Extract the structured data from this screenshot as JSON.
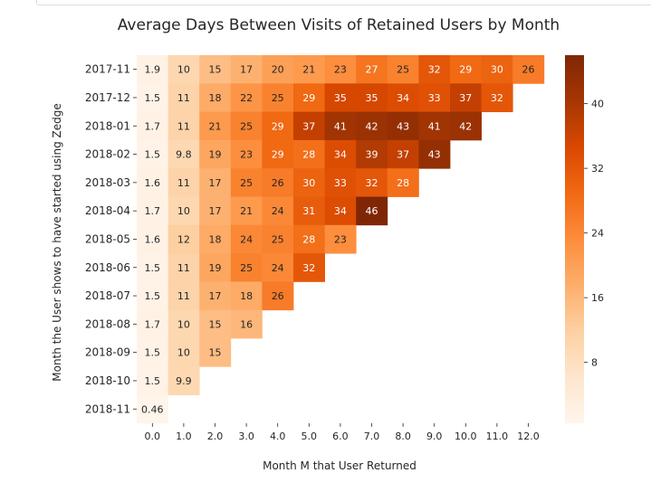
{
  "chart_data": {
    "type": "heatmap",
    "title": "Average Days Between Visits of Retained Users by Month",
    "xlabel": "Month M that User Returned",
    "ylabel": "Month the User shows to have started using Zedge",
    "x_categories": [
      "0.0",
      "1.0",
      "2.0",
      "3.0",
      "4.0",
      "5.0",
      "6.0",
      "7.0",
      "8.0",
      "9.0",
      "10.0",
      "11.0",
      "12.0"
    ],
    "y_categories": [
      "2017-11",
      "2017-12",
      "2018-01",
      "2018-02",
      "2018-03",
      "2018-04",
      "2018-05",
      "2018-06",
      "2018-07",
      "2018-08",
      "2018-09",
      "2018-10",
      "2018-11"
    ],
    "values": [
      [
        1.9,
        10,
        15,
        17,
        20,
        21,
        23,
        27,
        25,
        32,
        29,
        30,
        26
      ],
      [
        1.5,
        11,
        18,
        22,
        25,
        29,
        35,
        35,
        34,
        33,
        37,
        32
      ],
      [
        1.7,
        11,
        21,
        25,
        29,
        37,
        41,
        42,
        43,
        41,
        42
      ],
      [
        1.5,
        9.8,
        19,
        23,
        29,
        28,
        34,
        39,
        37,
        43
      ],
      [
        1.6,
        11,
        17,
        25,
        26,
        30,
        33,
        32,
        28
      ],
      [
        1.7,
        10,
        17,
        21,
        24,
        31,
        34,
        46
      ],
      [
        1.6,
        12,
        18,
        24,
        25,
        28,
        23
      ],
      [
        1.5,
        11,
        19,
        25,
        24,
        32
      ],
      [
        1.5,
        11,
        17,
        18,
        26
      ],
      [
        1.7,
        10,
        15,
        16
      ],
      [
        1.5,
        10,
        15
      ],
      [
        1.5,
        9.9
      ],
      [
        0.46
      ]
    ],
    "labels": [
      [
        "1.9",
        "10",
        "15",
        "17",
        "20",
        "21",
        "23",
        "27",
        "25",
        "32",
        "29",
        "30",
        "26"
      ],
      [
        "1.5",
        "11",
        "18",
        "22",
        "25",
        "29",
        "35",
        "35",
        "34",
        "33",
        "37",
        "32"
      ],
      [
        "1.7",
        "11",
        "21",
        "25",
        "29",
        "37",
        "41",
        "42",
        "43",
        "41",
        "42"
      ],
      [
        "1.5",
        "9.8",
        "19",
        "23",
        "29",
        "28",
        "34",
        "39",
        "37",
        "43"
      ],
      [
        "1.6",
        "11",
        "17",
        "25",
        "26",
        "30",
        "33",
        "32",
        "28"
      ],
      [
        "1.7",
        "10",
        "17",
        "21",
        "24",
        "31",
        "34",
        "46"
      ],
      [
        "1.6",
        "12",
        "18",
        "24",
        "25",
        "28",
        "23"
      ],
      [
        "1.5",
        "11",
        "19",
        "25",
        "24",
        "32"
      ],
      [
        "1.5",
        "11",
        "17",
        "18",
        "26"
      ],
      [
        "1.7",
        "10",
        "15",
        "16"
      ],
      [
        "1.5",
        "10",
        "15"
      ],
      [
        "1.5",
        "9.9"
      ],
      [
        "0.46"
      ]
    ],
    "colorbar": {
      "min": 0.46,
      "max": 46,
      "ticks": [
        8,
        16,
        24,
        32,
        40
      ],
      "tick_labels": [
        "8",
        "16",
        "24",
        "32",
        "40"
      ],
      "colormap": "Oranges",
      "stops": [
        "#fff5eb",
        "#fee6ce",
        "#fdd0a2",
        "#fdae6b",
        "#fd8d3c",
        "#f16913",
        "#d94801",
        "#a63603",
        "#7f2704"
      ]
    },
    "grid": false,
    "legend": "colorbar-right"
  }
}
